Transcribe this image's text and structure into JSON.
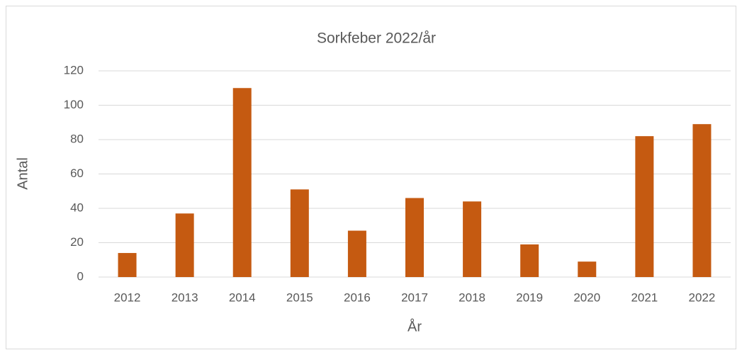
{
  "chart_data": {
    "type": "bar",
    "title": "Sorkfeber 2022/år",
    "x_label": "År",
    "y_label": "Antal",
    "categories": [
      "2012",
      "2013",
      "2014",
      "2015",
      "2016",
      "2017",
      "2018",
      "2019",
      "2020",
      "2021",
      "2022"
    ],
    "values": [
      14,
      37,
      110,
      51,
      27,
      46,
      44,
      19,
      9,
      82,
      89
    ],
    "color": "#c55a11",
    "ylim": [
      0,
      120
    ],
    "yticks": [
      0,
      20,
      40,
      60,
      80,
      100,
      120
    ],
    "grid": true
  }
}
